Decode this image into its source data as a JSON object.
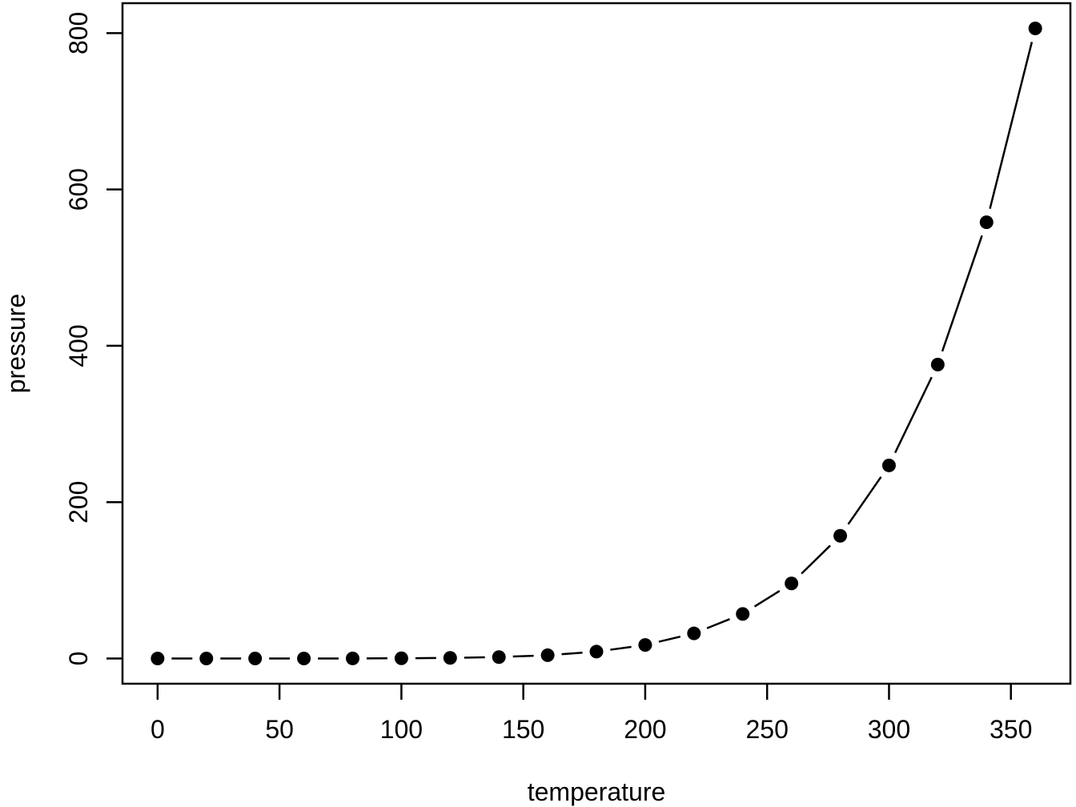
{
  "chart_data": {
    "type": "scatter",
    "connected": true,
    "marker": "filled-circle",
    "line_style": "segments-with-gaps (R type='b')",
    "title": "",
    "xlabel": "temperature",
    "ylabel": "pressure",
    "x": [
      0,
      20,
      40,
      60,
      80,
      100,
      120,
      140,
      160,
      180,
      200,
      220,
      240,
      260,
      280,
      300,
      320,
      340,
      360
    ],
    "y": [
      0.0002,
      0.0012,
      0.006,
      0.03,
      0.09,
      0.27,
      0.75,
      1.85,
      4.2,
      8.8,
      17.3,
      32.1,
      57,
      96,
      157,
      247,
      376,
      558,
      806
    ],
    "xticks": [
      0,
      50,
      100,
      150,
      200,
      250,
      300,
      350
    ],
    "yticks": [
      0,
      200,
      400,
      600,
      800
    ],
    "xlim": [
      -14.4,
      374.4
    ],
    "ylim": [
      -32.2,
      838.2
    ],
    "grid": false,
    "legend": null,
    "colors": {
      "foreground": "#000000",
      "background": "#ffffff"
    }
  }
}
